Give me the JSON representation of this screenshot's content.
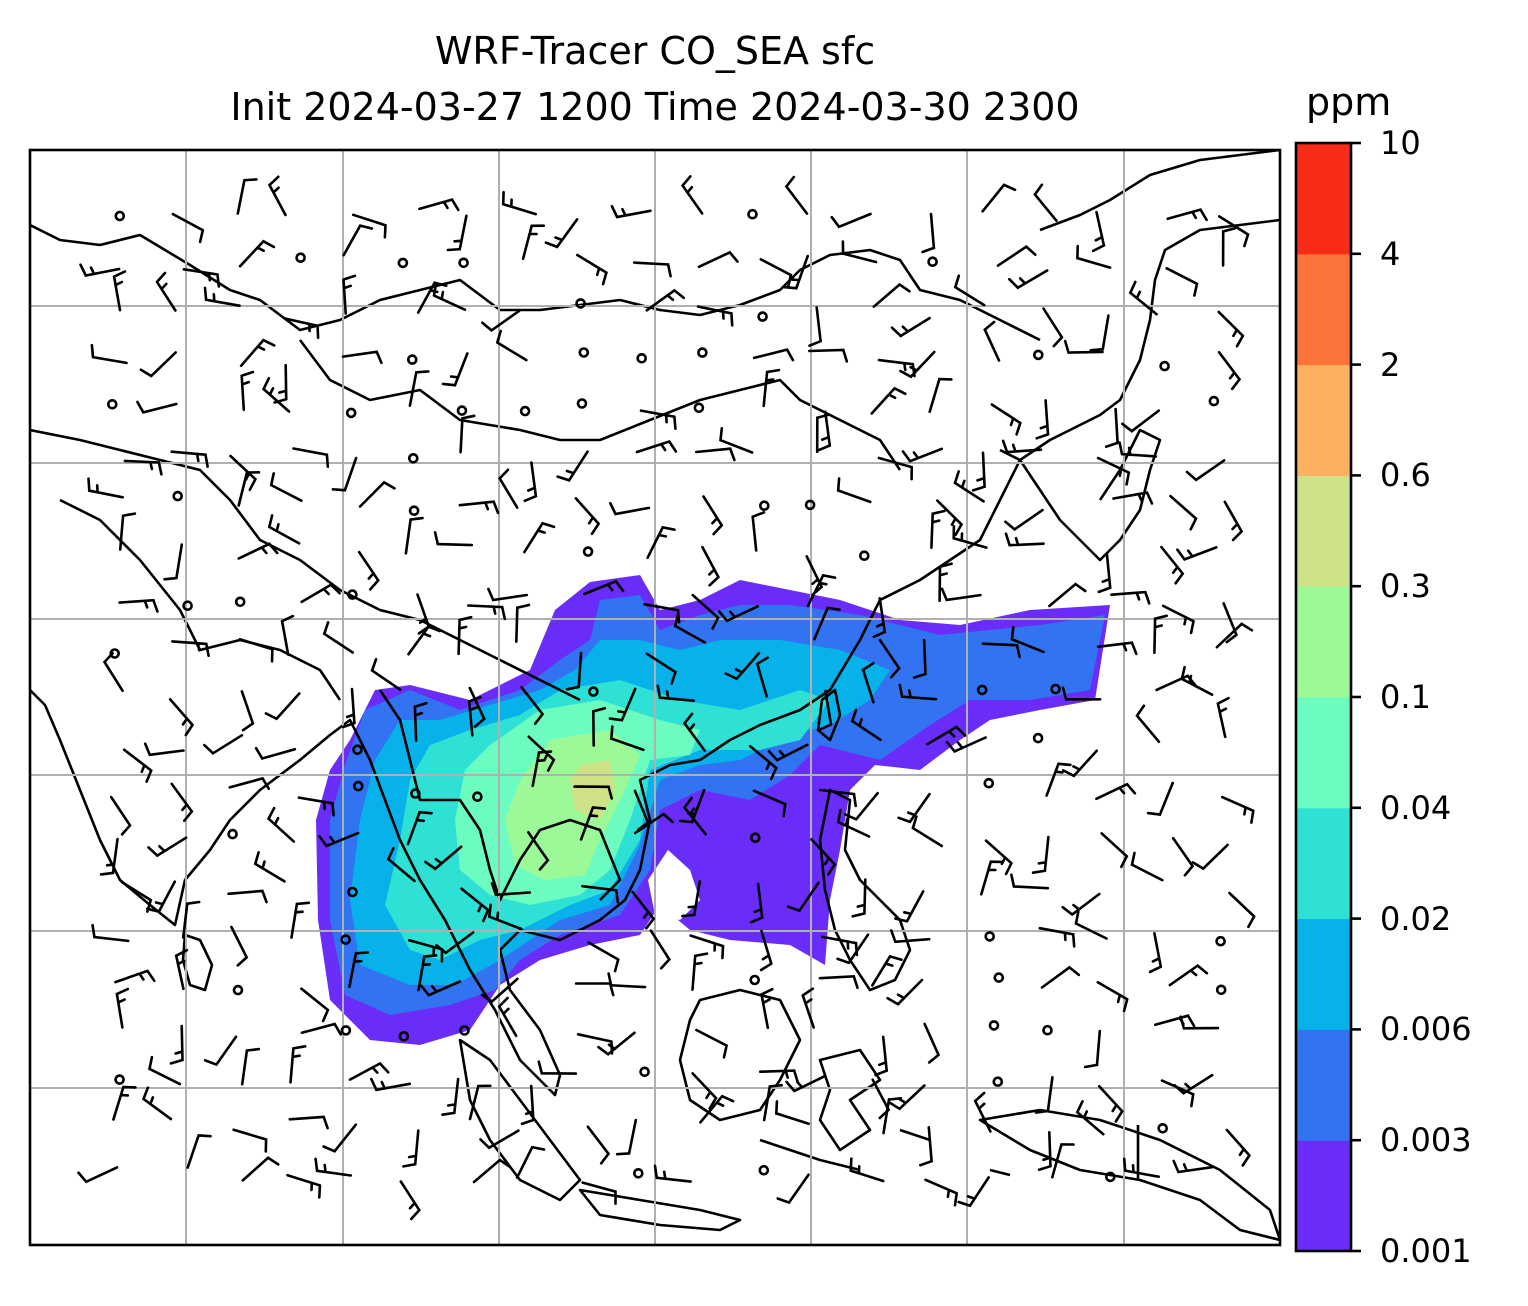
{
  "title": {
    "line1": "WRF-Tracer CO_SEA sfc",
    "line2": "Init 2024-03-27 1200 Time 2024-03-30 2300"
  },
  "colorbar": {
    "unit": "ppm",
    "levels": [
      "0.001",
      "0.003",
      "0.006",
      "0.02",
      "0.04",
      "0.1",
      "0.3",
      "0.6",
      "2",
      "4",
      "10"
    ],
    "colors": [
      "#6a2cf8",
      "#3273f1",
      "#07b1e9",
      "#2fe0d4",
      "#6cfcc0",
      "#9cf997",
      "#cde186",
      "#fcb060",
      "#fd743a",
      "#f92c18"
    ]
  },
  "map": {
    "gridlines": true,
    "features": [
      "coastlines",
      "country-borders",
      "wind-barbs",
      "calm-wind-circles",
      "tracer-filled-contours"
    ]
  }
}
